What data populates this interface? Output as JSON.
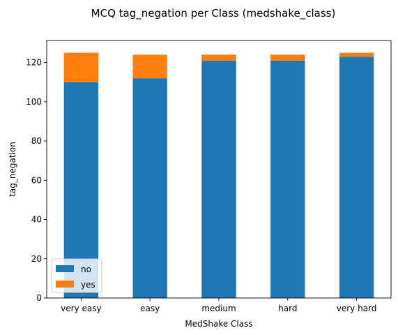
{
  "chart_data": {
    "type": "bar",
    "stacked": true,
    "title": "MCQ tag_negation per Class (medshake_class)",
    "xlabel": "MedShake Class",
    "ylabel": "tag_negation",
    "categories": [
      "very easy",
      "easy",
      "medium",
      "hard",
      "very hard"
    ],
    "series": [
      {
        "name": "no",
        "values": [
          110,
          112,
          121,
          121,
          123
        ],
        "color": "#1f77b4"
      },
      {
        "name": "yes",
        "values": [
          15,
          12,
          3,
          3,
          2
        ],
        "color": "#ff7f0e"
      }
    ],
    "ylim": [
      0,
      131.25
    ],
    "yticks": [
      0,
      20,
      40,
      60,
      80,
      100,
      120
    ],
    "grid": false,
    "legend_position": "lower-left"
  }
}
